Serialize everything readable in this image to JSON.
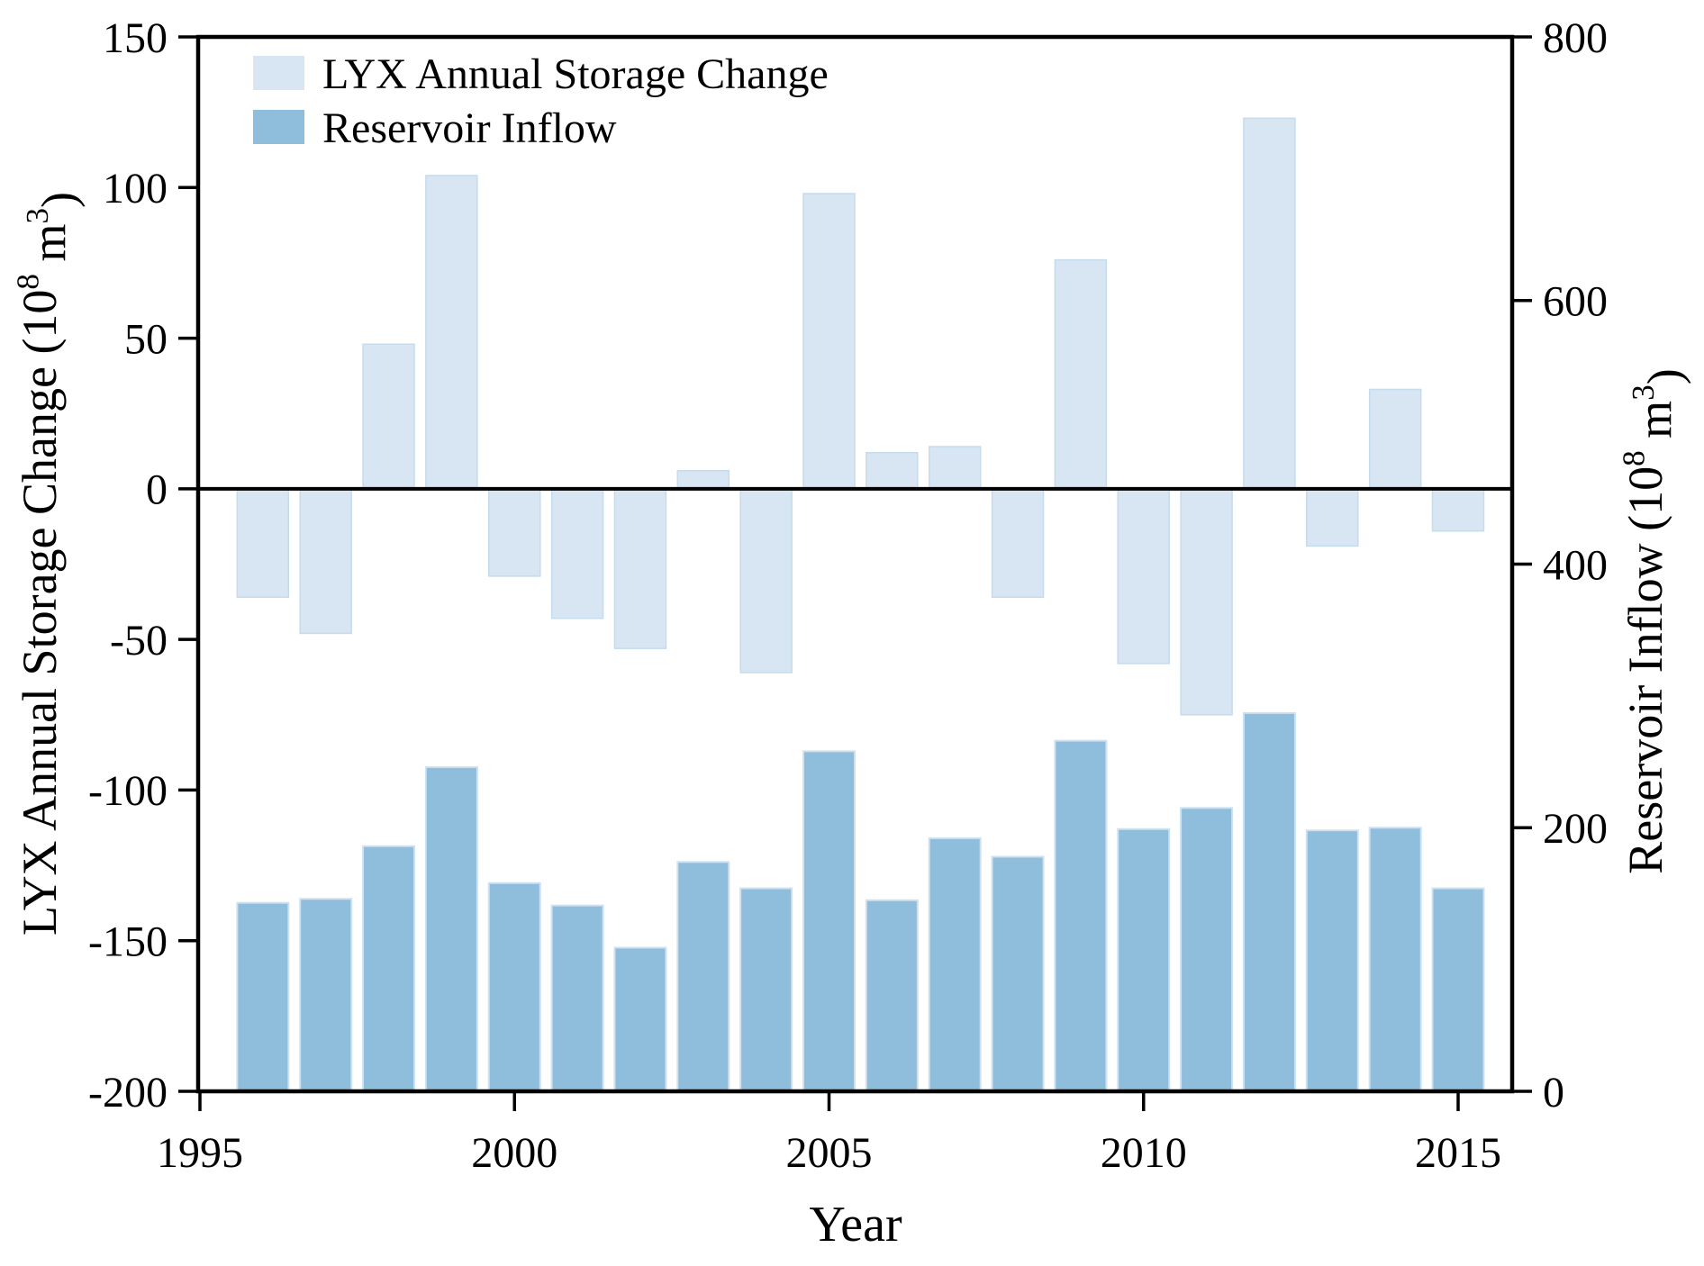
{
  "chart_data": {
    "type": "bar",
    "title": "",
    "xlabel": "Year",
    "categories": [
      1996,
      1997,
      1998,
      1999,
      2000,
      2001,
      2002,
      2003,
      2004,
      2005,
      2006,
      2007,
      2008,
      2009,
      2010,
      2011,
      2012,
      2013,
      2014,
      2015
    ],
    "series": [
      {
        "name": "LYX Annual Storage Change",
        "axis": "left",
        "color": "#d7e6f2",
        "edge_color": "#c6dbec",
        "values": [
          -36,
          -48,
          48,
          104,
          -29,
          -43,
          -53,
          6,
          -61,
          98,
          12,
          14,
          -36,
          76,
          -58,
          -75,
          123,
          -19,
          33,
          -14
        ]
      },
      {
        "name": "Reservoir Inflow",
        "axis": "right",
        "color": "#8fbddc",
        "edge_color": "#cfe0ef",
        "values": [
          143,
          146,
          186,
          246,
          158,
          141,
          109,
          174,
          154,
          258,
          145,
          192,
          178,
          266,
          199,
          215,
          287,
          198,
          200,
          154
        ]
      }
    ],
    "left_axis": {
      "label_segments": [
        {
          "t": "LYX Annual Storage Change (10"
        },
        {
          "t": "8",
          "sup": true
        },
        {
          "t": " m"
        },
        {
          "t": "3",
          "sup": true
        },
        {
          "t": ")"
        }
      ],
      "ticks": [
        150,
        100,
        50,
        0,
        -50,
        -100,
        -150,
        -200
      ],
      "range": [
        -200,
        150
      ]
    },
    "right_axis": {
      "label_segments": [
        {
          "t": "Reservoir Inflow (10"
        },
        {
          "t": "8",
          "sup": true
        },
        {
          "t": " m"
        },
        {
          "t": "3",
          "sup": true
        },
        {
          "t": ")"
        }
      ],
      "ticks": [
        800,
        600,
        400,
        200,
        0
      ],
      "range": [
        0,
        800
      ]
    },
    "x_axis": {
      "label": "Year",
      "ticks": [
        1995,
        2000,
        2005,
        2010,
        2015
      ]
    },
    "legend": {
      "position": "upper-left",
      "items": [
        {
          "label": "LYX Annual Storage Change",
          "color": "#d7e6f2"
        },
        {
          "label": "Reservoir Inflow",
          "color": "#8fbddc"
        }
      ]
    },
    "grid": false,
    "axis_color": "#000000",
    "background_color": "#ffffff"
  }
}
